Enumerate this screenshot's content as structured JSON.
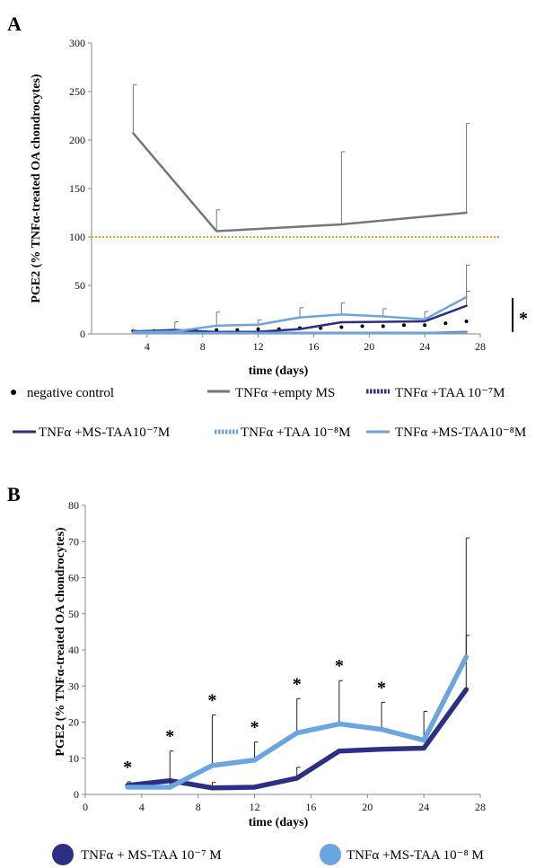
{
  "panels": [
    {
      "letter": "A"
    },
    {
      "letter": "B"
    }
  ],
  "chart_data": [
    {
      "type": "line",
      "panel": "A",
      "xlabel": "time (days)",
      "ylabel": "PGE2 (% TNFα-treated OA chondrocytes)",
      "xlim": [
        0,
        28
      ],
      "ylim": [
        0,
        300
      ],
      "x_ticks": [
        4,
        8,
        12,
        16,
        20,
        24,
        28
      ],
      "y_ticks": [
        0,
        50,
        100,
        150,
        200,
        250,
        300
      ],
      "reference_line": {
        "y": 100,
        "color": "#f0a020",
        "style": "dotted"
      },
      "significance_marker": "*",
      "series": [
        {
          "name": "negative control",
          "style": "dots",
          "color": "#000000",
          "x": [
            3,
            4.5,
            6,
            7.5,
            9,
            10.5,
            12,
            13.5,
            15,
            16.5,
            18,
            19.5,
            21,
            22.5,
            24,
            25.5,
            27
          ],
          "y": [
            3,
            3,
            3,
            4,
            4,
            4,
            5,
            5,
            6,
            6,
            7,
            8,
            8,
            9,
            9,
            11,
            13
          ],
          "err": []
        },
        {
          "name": "TNFα +empty MS",
          "style": "solid",
          "color": "#777777",
          "x": [
            3,
            9,
            18,
            27
          ],
          "y": [
            207,
            106,
            113,
            125
          ],
          "err": [
            50,
            22,
            75,
            92
          ]
        },
        {
          "name": "TNFα +TAA 10⁻⁷M",
          "style": "dashed",
          "color": "#2b2f85",
          "x": [
            3,
            6,
            9,
            12,
            15,
            18,
            21,
            24,
            27
          ],
          "y": [
            1,
            1,
            1,
            1,
            1,
            1,
            1,
            1,
            2
          ],
          "err": []
        },
        {
          "name": "TNFα +MS-TAA10⁻⁷M",
          "style": "solid",
          "color": "#2b2f85",
          "x": [
            3,
            6,
            9,
            12,
            15,
            18,
            21,
            24,
            27
          ],
          "y": [
            2.5,
            4,
            2,
            2.2,
            5,
            12,
            12.5,
            13,
            29
          ],
          "err": [
            0,
            0,
            0,
            0,
            0,
            0,
            0,
            0,
            15
          ]
        },
        {
          "name": "TNFα +TAA 10⁻⁸M",
          "style": "dashed",
          "color": "#6aa5e0",
          "x": [
            3,
            6,
            9,
            12,
            15,
            18,
            21,
            24,
            27
          ],
          "y": [
            1,
            1,
            1,
            1,
            1,
            1,
            1,
            1,
            1.5
          ],
          "err": []
        },
        {
          "name": "TNFα +MS-TAA10⁻⁸M",
          "style": "solid",
          "color": "#6aa5e0",
          "x": [
            3,
            6,
            9,
            12,
            15,
            18,
            21,
            24,
            27
          ],
          "y": [
            2,
            2.5,
            8.5,
            9.5,
            17,
            20,
            18,
            15,
            38
          ],
          "err": [
            2,
            10,
            14,
            5,
            10,
            12,
            8,
            8,
            33
          ]
        }
      ]
    },
    {
      "type": "line",
      "panel": "B",
      "xlabel": "time (days)",
      "ylabel": "PGE2 (% TNFα-treated  OA chondrocytes)",
      "xlim": [
        0,
        28
      ],
      "ylim": [
        0,
        80
      ],
      "x_ticks": [
        0,
        4,
        8,
        12,
        16,
        20,
        24,
        28
      ],
      "y_ticks": [
        0,
        10,
        20,
        30,
        40,
        50,
        60,
        70,
        80
      ],
      "significance_marker": "*",
      "significance_x": [
        3,
        6,
        9,
        12,
        15,
        18,
        21
      ],
      "series": [
        {
          "name": "TNFα + MS-TAA 10⁻⁷ M",
          "color": "#2b2f85",
          "x": [
            3,
            6,
            9,
            12,
            15,
            18,
            21,
            24,
            27
          ],
          "y": [
            2.5,
            3.8,
            1.8,
            2,
            4.5,
            12,
            12.5,
            12.8,
            29
          ],
          "err": [
            1,
            0,
            1.5,
            0,
            3,
            0,
            0,
            0,
            15
          ]
        },
        {
          "name": "TNFα +MS-TAA 10⁻⁸ M",
          "color": "#6aa5e0",
          "x": [
            3,
            6,
            9,
            12,
            15,
            18,
            21,
            24,
            27
          ],
          "y": [
            2,
            2,
            8,
            9.5,
            17,
            19.5,
            18,
            15,
            38
          ],
          "err": [
            0,
            10,
            14,
            5,
            9.5,
            12,
            7.5,
            8,
            33
          ]
        }
      ]
    }
  ]
}
